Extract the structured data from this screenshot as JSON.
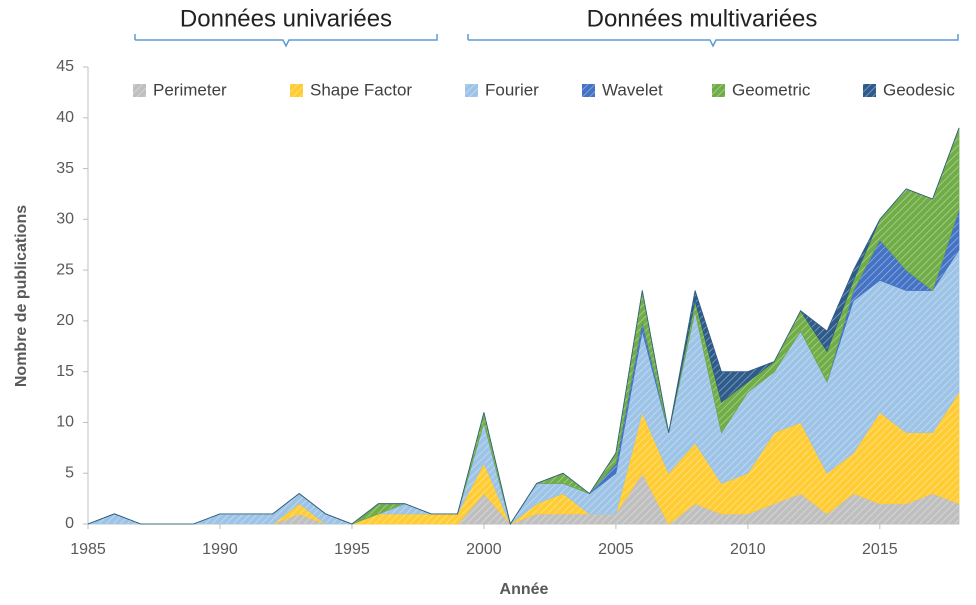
{
  "chart_data": {
    "type": "stacked-area",
    "annotations": [
      "Données univariées",
      "Données multivariées"
    ],
    "xlabel": "Année",
    "ylabel": "Nombre  de publications",
    "x": [
      1985,
      1986,
      1987,
      1988,
      1989,
      1990,
      1991,
      1992,
      1993,
      1994,
      1995,
      1996,
      1997,
      1998,
      1999,
      2000,
      2001,
      2002,
      2003,
      2004,
      2005,
      2006,
      2007,
      2008,
      2009,
      2010,
      2011,
      2012,
      2013,
      2014,
      2015,
      2016,
      2017,
      2018
    ],
    "series": [
      {
        "name": "Perimeter",
        "color": "#bfbfbf",
        "values": [
          0,
          0,
          0,
          0,
          0,
          0,
          0,
          0,
          1,
          0,
          0,
          0,
          0,
          0,
          0,
          3,
          0,
          1,
          1,
          1,
          1,
          5,
          0,
          2,
          1,
          1,
          2,
          3,
          1,
          3,
          2,
          2,
          3,
          2
        ]
      },
      {
        "name": "Shape Factor",
        "color": "#ffcc33",
        "values": [
          0,
          0,
          0,
          0,
          0,
          0,
          0,
          0,
          1,
          0,
          0,
          1,
          1,
          1,
          1,
          3,
          0,
          1,
          2,
          0,
          0,
          6,
          5,
          6,
          3,
          4,
          7,
          7,
          4,
          4,
          9,
          7,
          6,
          11
        ]
      },
      {
        "name": "Fourier",
        "color": "#9dc3e6",
        "values": [
          0,
          1,
          0,
          0,
          0,
          1,
          1,
          1,
          1,
          1,
          0,
          0,
          1,
          0,
          0,
          4,
          0,
          2,
          1,
          2,
          4,
          8,
          4,
          13,
          5,
          8,
          6,
          9,
          9,
          15,
          13,
          14,
          14,
          14
        ]
      },
      {
        "name": "Wavelet",
        "color": "#4472c4",
        "values": [
          0,
          0,
          0,
          0,
          0,
          0,
          0,
          0,
          0,
          0,
          0,
          0,
          0,
          0,
          0,
          0,
          0,
          0,
          0,
          0,
          1,
          1,
          0,
          0,
          0,
          0,
          0,
          0,
          0,
          1,
          4,
          2,
          0,
          4
        ]
      },
      {
        "name": "Geometric",
        "color": "#70ad47",
        "values": [
          0,
          0,
          0,
          0,
          0,
          0,
          0,
          0,
          0,
          0,
          0,
          1,
          0,
          0,
          0,
          1,
          0,
          0,
          1,
          0,
          1,
          3,
          0,
          1,
          3,
          1,
          1,
          2,
          3,
          1,
          2,
          8,
          9,
          8
        ]
      },
      {
        "name": "Geodesic",
        "color": "#2e5b8a",
        "values": [
          0,
          0,
          0,
          0,
          0,
          0,
          0,
          0,
          0,
          0,
          0,
          0,
          0,
          0,
          0,
          0,
          0,
          0,
          0,
          0,
          0,
          0,
          0,
          1,
          3,
          1,
          0,
          0,
          2,
          1,
          0,
          0,
          0,
          0
        ]
      }
    ],
    "xlim": [
      1985,
      2018
    ],
    "xticks": [
      1985,
      1990,
      1995,
      2000,
      2005,
      2010,
      2015
    ],
    "ylim": [
      0,
      45
    ],
    "yticks": [
      0,
      5,
      10,
      15,
      20,
      25,
      30,
      35,
      40,
      45
    ],
    "grid": false,
    "legend": "top"
  }
}
